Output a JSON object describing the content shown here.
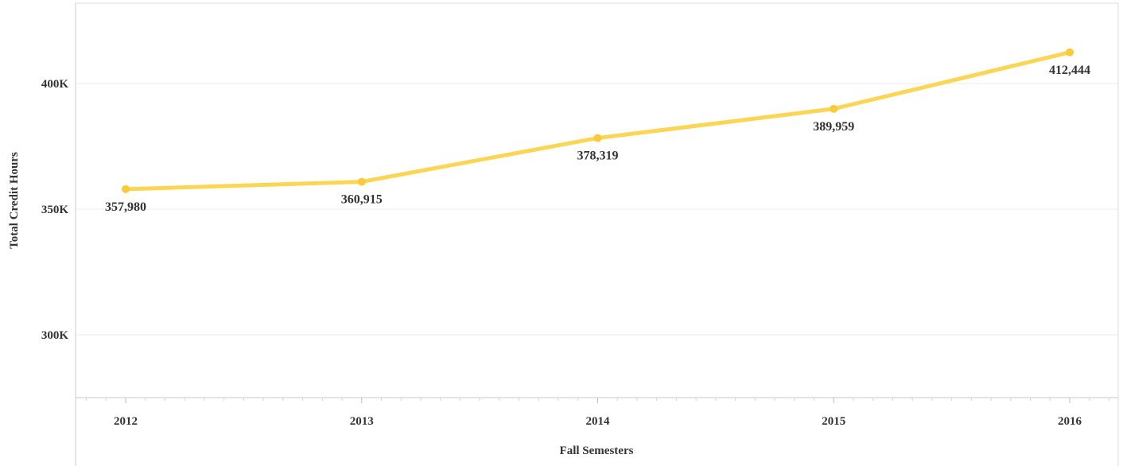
{
  "chart_data": {
    "type": "line",
    "title": "",
    "xlabel": "Fall Semesters",
    "ylabel": "Total Credit Hours",
    "categories": [
      "2012",
      "2013",
      "2014",
      "2015",
      "2016"
    ],
    "series": [
      {
        "values": [
          357980,
          360915,
          378319,
          389959,
          412444
        ],
        "labels": [
          "357,980",
          "360,915",
          "378,319",
          "389,959",
          "412,444"
        ]
      }
    ],
    "ylim": [
      275000,
      432000
    ],
    "yticks": [
      {
        "value": 300000,
        "label": "300K"
      },
      {
        "value": 350000,
        "label": "350K"
      },
      {
        "value": 400000,
        "label": "400K"
      }
    ],
    "grid": true,
    "legend": "none",
    "colors": {
      "line": "#FBD554",
      "marker": "#FBC93A",
      "grid": "#EBEBEB",
      "axis": "#C8C8C8",
      "text": "#333333"
    }
  }
}
